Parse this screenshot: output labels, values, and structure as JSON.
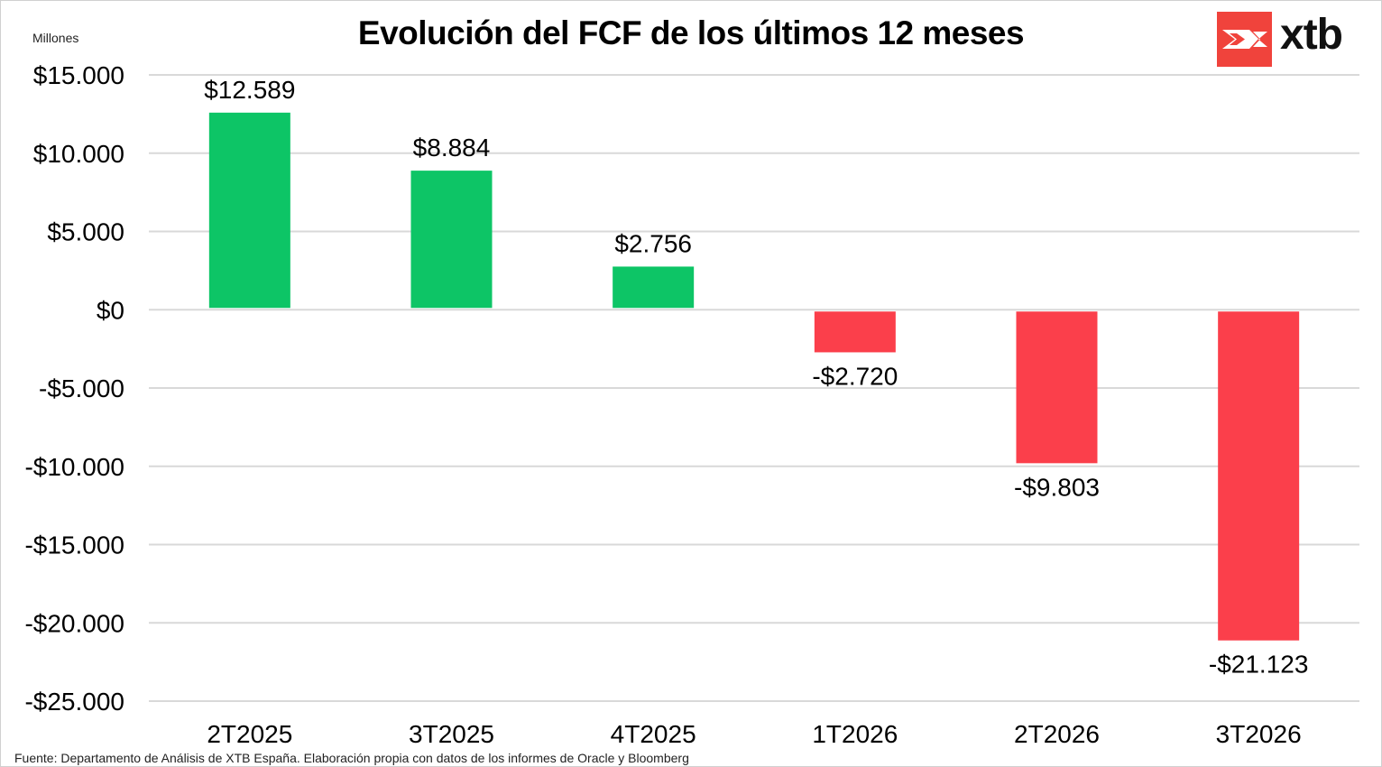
{
  "chart_data": {
    "type": "bar",
    "title": "Evolución del FCF de los últimos 12 meses",
    "units_label": "Millones",
    "categories": [
      "2T2025",
      "3T2025",
      "4T2025",
      "1T2026",
      "2T2026",
      "3T2026"
    ],
    "values": [
      12589,
      8884,
      2756,
      -2720,
      -9803,
      -21123
    ],
    "data_labels": [
      "$12.589",
      "$8.884",
      "$2.756",
      "-$2.720",
      "-$9.803",
      "-$21.123"
    ],
    "ylim": [
      -25000,
      15000
    ],
    "yticks": [
      15000,
      10000,
      5000,
      0,
      -5000,
      -10000,
      -15000,
      -20000,
      -25000
    ],
    "ytick_labels": [
      "$15.000",
      "$10.000",
      "$5.000",
      "$0",
      "-$5.000",
      "-$10.000",
      "-$15.000",
      "-$20.000",
      "-$25.000"
    ],
    "grid": true,
    "xlabel": "",
    "ylabel": "",
    "colors": {
      "positive": "#0dc566",
      "negative": "#fb3f4b",
      "grid": "#d9d9d9"
    }
  },
  "source": "Fuente: Departamento de Análisis de XTB España. Elaboración propia con datos de los informes de Oracle y Bloomberg",
  "brand": {
    "name": "xtb",
    "color": "#f0433c"
  }
}
